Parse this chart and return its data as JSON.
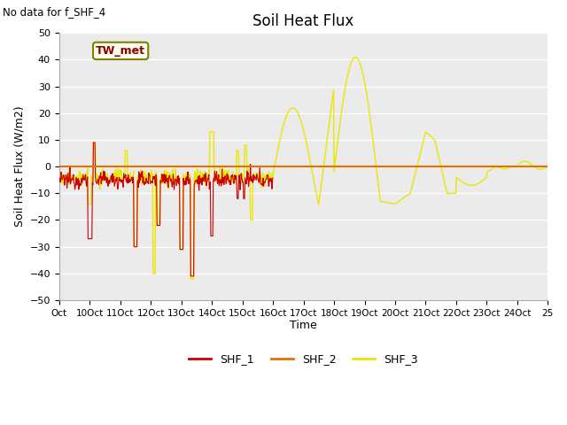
{
  "title": "Soil Heat Flux",
  "ylabel": "Soil Heat Flux (W/m2)",
  "xlabel": "Time",
  "annotation_text": "No data for f_SHF_4",
  "legend_box_text": "TW_met",
  "ylim": [
    -50,
    50
  ],
  "yticks": [
    -50,
    -40,
    -30,
    -20,
    -10,
    0,
    10,
    20,
    30,
    40,
    50
  ],
  "xtick_labels": [
    "Oct",
    "10Oct",
    "11Oct",
    "12Oct",
    "13Oct",
    "14Oct",
    "15Oct",
    "16Oct",
    "17Oct",
    "18Oct",
    "19Oct",
    "20Oct",
    "21Oct",
    "22Oct",
    "23Oct",
    "24Oct",
    "25"
  ],
  "legend_labels": [
    "SHF_1",
    "SHF_2",
    "SHF_3"
  ],
  "colors": {
    "SHF_1": "#cc0000",
    "SHF_2": "#e87000",
    "SHF_3": "#e8e800"
  },
  "bg_color": "#ebebeb",
  "title_fontsize": 12,
  "axis_label_fontsize": 9
}
